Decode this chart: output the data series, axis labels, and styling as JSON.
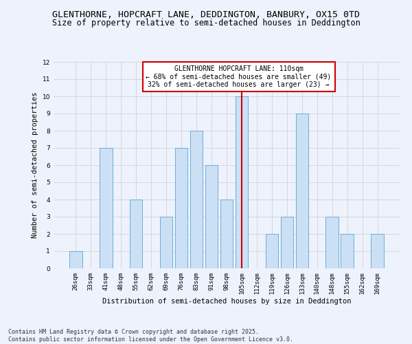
{
  "title_line1": "GLENTHORNE, HOPCRAFT LANE, DEDDINGTON, BANBURY, OX15 0TD",
  "title_line2": "Size of property relative to semi-detached houses in Deddington",
  "xlabel": "Distribution of semi-detached houses by size in Deddington",
  "ylabel": "Number of semi-detached properties",
  "categories": [
    "26sqm",
    "33sqm",
    "41sqm",
    "48sqm",
    "55sqm",
    "62sqm",
    "69sqm",
    "76sqm",
    "83sqm",
    "91sqm",
    "98sqm",
    "105sqm",
    "112sqm",
    "119sqm",
    "126sqm",
    "133sqm",
    "140sqm",
    "148sqm",
    "155sqm",
    "162sqm",
    "169sqm"
  ],
  "values": [
    1,
    0,
    7,
    0,
    4,
    0,
    3,
    7,
    8,
    6,
    4,
    10,
    0,
    2,
    3,
    9,
    0,
    3,
    2,
    0,
    2
  ],
  "bar_color": "#cce0f5",
  "bar_edge_color": "#6aaed6",
  "highlight_index": 11,
  "vline_x": 11,
  "vline_color": "#cc0000",
  "annotation_text": "GLENTHORNE HOPCRAFT LANE: 110sqm\n← 68% of semi-detached houses are smaller (49)\n32% of semi-detached houses are larger (23) →",
  "annotation_box_color": "#ffffff",
  "annotation_box_edge": "#cc0000",
  "ylim": [
    0,
    12
  ],
  "yticks": [
    0,
    1,
    2,
    3,
    4,
    5,
    6,
    7,
    8,
    9,
    10,
    11,
    12
  ],
  "grid_color": "#cccccc",
  "background_color": "#eef2fc",
  "footer_line1": "Contains HM Land Registry data © Crown copyright and database right 2025.",
  "footer_line2": "Contains public sector information licensed under the Open Government Licence v3.0.",
  "title_fontsize": 9.5,
  "subtitle_fontsize": 8.5,
  "axis_label_fontsize": 7.5,
  "tick_fontsize": 6.5,
  "annotation_fontsize": 7,
  "footer_fontsize": 6
}
